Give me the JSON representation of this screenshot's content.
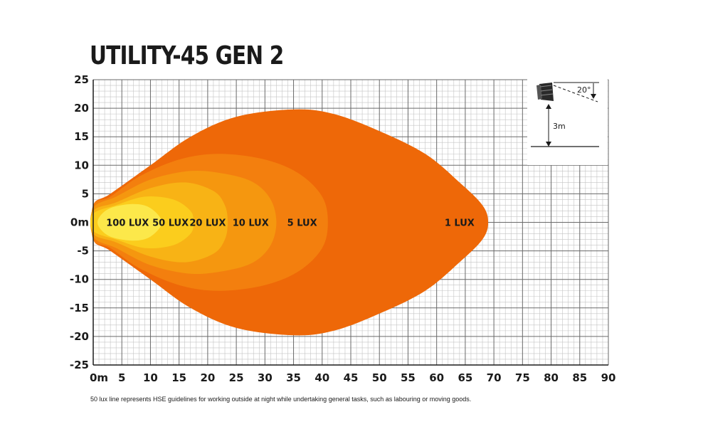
{
  "chart_data": {
    "type": "area",
    "title": "UTILITY-45 GEN 2",
    "xlabel": "",
    "ylabel": "",
    "x_ticks": [
      "0m",
      "5",
      "10",
      "15",
      "20",
      "25",
      "30",
      "35",
      "40",
      "45",
      "50",
      "55",
      "60",
      "65",
      "70",
      "75",
      "80",
      "85",
      "90"
    ],
    "y_ticks": [
      "25",
      "20",
      "15",
      "10",
      "5",
      "0m",
      "-5",
      "-10",
      "-15",
      "-20",
      "-25"
    ],
    "xlim": [
      0,
      90
    ],
    "ylim": [
      -25,
      25
    ],
    "grid": true,
    "series": [
      {
        "name": "1 LUX",
        "color": "#ee6808",
        "reach": 69,
        "half_width": 20,
        "points": [
          [
            0,
            3
          ],
          [
            3,
            5
          ],
          [
            10,
            10
          ],
          [
            17,
            15
          ],
          [
            25,
            18.5
          ],
          [
            35,
            19.8
          ],
          [
            42,
            19
          ],
          [
            50,
            16
          ],
          [
            58,
            12
          ],
          [
            64,
            7
          ],
          [
            68,
            3
          ],
          [
            69,
            0
          ],
          [
            68,
            -3
          ],
          [
            64,
            -7
          ],
          [
            58,
            -12
          ],
          [
            50,
            -16
          ],
          [
            42,
            -19
          ],
          [
            35,
            -19.8
          ],
          [
            25,
            -18.5
          ],
          [
            17,
            -15
          ],
          [
            10,
            -10
          ],
          [
            3,
            -5
          ],
          [
            0,
            -3
          ]
        ]
      },
      {
        "name": "5 LUX",
        "color": "#f37f0e",
        "reach": 41,
        "half_width": 12,
        "points": [
          [
            0,
            3
          ],
          [
            3,
            4.5
          ],
          [
            8,
            8
          ],
          [
            15,
            11
          ],
          [
            22,
            12
          ],
          [
            30,
            11
          ],
          [
            36,
            8.5
          ],
          [
            40,
            4.5
          ],
          [
            41,
            0
          ],
          [
            40,
            -4.5
          ],
          [
            36,
            -8.5
          ],
          [
            30,
            -11
          ],
          [
            22,
            -12
          ],
          [
            15,
            -11
          ],
          [
            8,
            -8
          ],
          [
            3,
            -4.5
          ],
          [
            0,
            -3
          ]
        ]
      },
      {
        "name": "10 LUX",
        "color": "#f5970f",
        "reach": 32,
        "half_width": 9,
        "points": [
          [
            0,
            2.5
          ],
          [
            4,
            4.5
          ],
          [
            10,
            7.5
          ],
          [
            17,
            9
          ],
          [
            23,
            8.5
          ],
          [
            28,
            7
          ],
          [
            31,
            4
          ],
          [
            32,
            0
          ],
          [
            31,
            -4
          ],
          [
            28,
            -7
          ],
          [
            23,
            -8.5
          ],
          [
            17,
            -9
          ],
          [
            10,
            -7.5
          ],
          [
            4,
            -4.5
          ],
          [
            0,
            -2.5
          ]
        ]
      },
      {
        "name": "20 LUX",
        "color": "#f8b315",
        "reach": 23.5,
        "half_width": 7,
        "points": [
          [
            0,
            2
          ],
          [
            4,
            3.5
          ],
          [
            10,
            6
          ],
          [
            16,
            7
          ],
          [
            21,
            5.5
          ],
          [
            23,
            3
          ],
          [
            23.5,
            0
          ],
          [
            23,
            -3
          ],
          [
            21,
            -5.5
          ],
          [
            16,
            -7
          ],
          [
            10,
            -6
          ],
          [
            4,
            -3.5
          ],
          [
            0,
            -2
          ]
        ]
      },
      {
        "name": "50 LUX",
        "color": "#fbcd1d",
        "reach": 17.5,
        "half_width": 4.5,
        "points": [
          [
            0,
            1.5
          ],
          [
            4,
            3
          ],
          [
            9,
            4.5
          ],
          [
            14,
            4
          ],
          [
            17,
            2
          ],
          [
            17.5,
            0
          ],
          [
            17,
            -2
          ],
          [
            14,
            -4
          ],
          [
            9,
            -4.5
          ],
          [
            4,
            -3
          ],
          [
            0,
            -1.5
          ]
        ]
      },
      {
        "name": "100 LUX",
        "color": "#fce84a",
        "reach": 12,
        "half_width": 3.2,
        "points": [
          [
            1,
            0.8
          ],
          [
            3,
            2.5
          ],
          [
            7,
            3.2
          ],
          [
            10,
            2.5
          ],
          [
            12,
            0
          ],
          [
            10,
            -2.5
          ],
          [
            7,
            -3.2
          ],
          [
            3,
            -2.5
          ],
          [
            1,
            -0.8
          ]
        ]
      }
    ],
    "zone_labels": [
      {
        "text": "100 LUX",
        "x": 6,
        "y": 0
      },
      {
        "text": "50 LUX",
        "x": 13.5,
        "y": 0
      },
      {
        "text": "20 LUX",
        "x": 20,
        "y": 0
      },
      {
        "text": "10 LUX",
        "x": 27.5,
        "y": 0
      },
      {
        "text": "5 LUX",
        "x": 36.5,
        "y": 0
      },
      {
        "text": "1 LUX",
        "x": 64,
        "y": 0
      }
    ],
    "inset": {
      "angle_label": "20°",
      "height_label": "3m"
    }
  },
  "footnote": "50 lux line represents HSE guidelines for working outside at night while undertaking general tasks, such as labouring or moving goods."
}
